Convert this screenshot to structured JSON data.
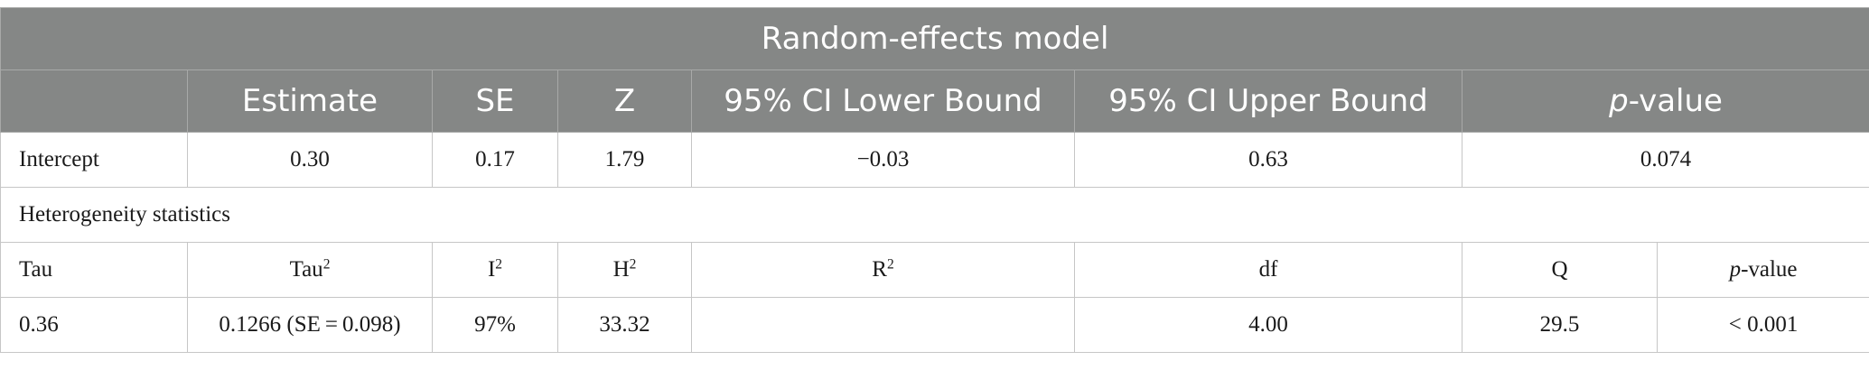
{
  "table": {
    "title": "Random-effects model",
    "header": {
      "estimate": "Estimate",
      "se": "SE",
      "z": "Z",
      "ci_lower": "95% CI Lower Bound",
      "ci_upper": "95% CI Upper Bound",
      "p_prefix": "p",
      "p_suffix": "-value"
    },
    "intercept": {
      "label": "Intercept",
      "estimate": "0.30",
      "se": "0.17",
      "z": "1.79",
      "ci_lower": "−0.03",
      "ci_upper": "0.63",
      "p": "0.074"
    },
    "heterogeneity_label": "Heterogeneity statistics",
    "het_header": {
      "tau": "Tau",
      "tau2": "Tau",
      "i2": "I",
      "h2": "H",
      "r2": "R",
      "sup2": "2",
      "df": "df",
      "q": "Q",
      "p_prefix": "p",
      "p_suffix": "-value"
    },
    "het_values": {
      "tau": "0.36",
      "tau2": "0.1266 (SE = 0.098)",
      "i2": "97%",
      "h2": "33.32",
      "r2": "",
      "df": "4.00",
      "q": "29.5",
      "p": "< 0.001"
    }
  }
}
